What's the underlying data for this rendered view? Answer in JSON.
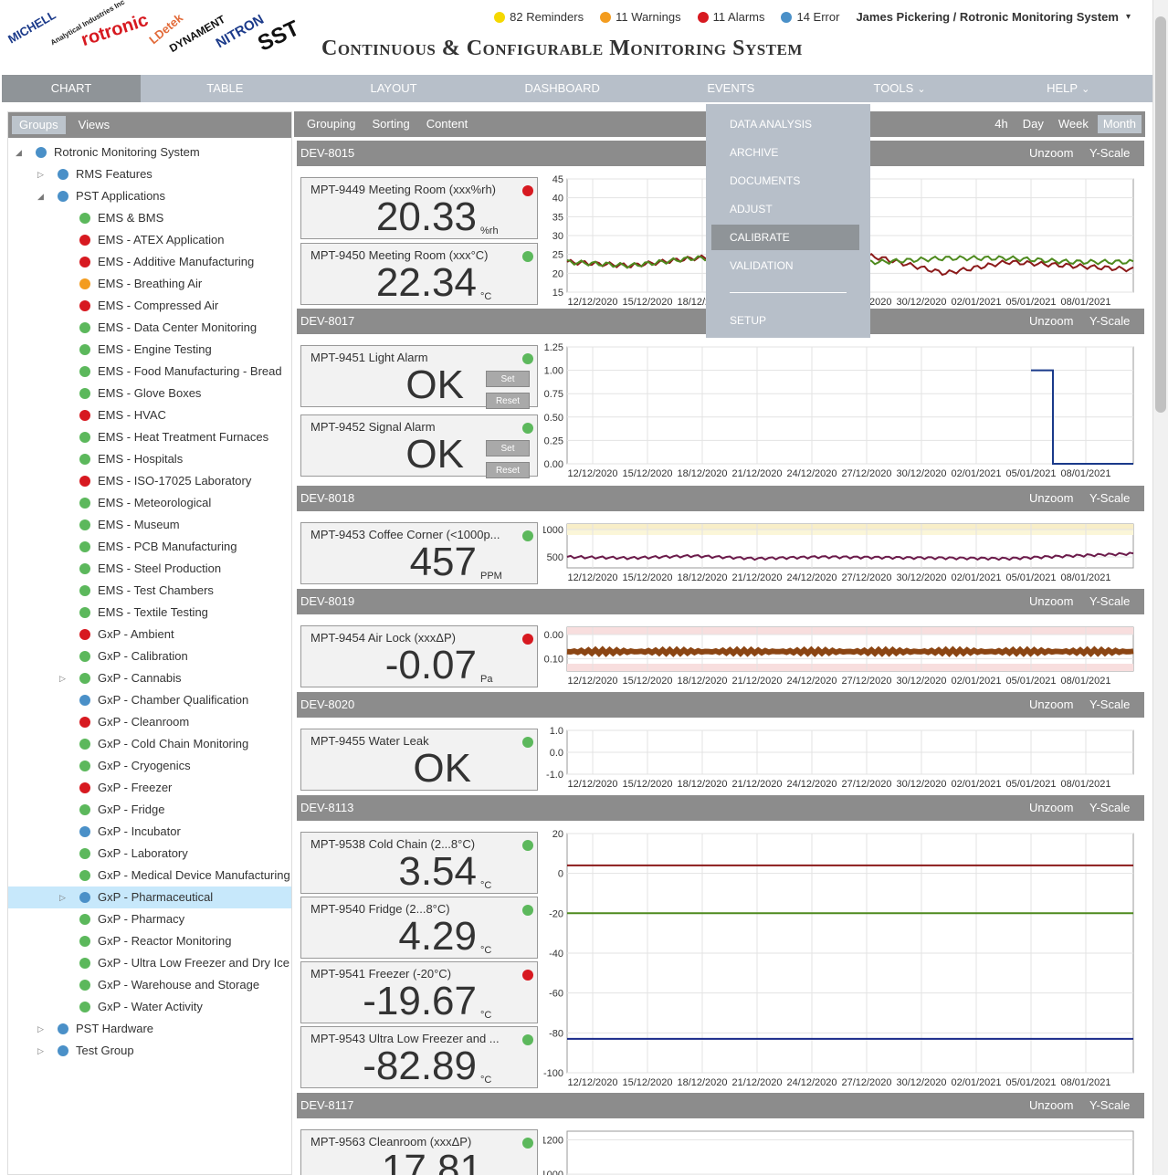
{
  "header": {
    "logos": [
      "MICHELL",
      "Analytical Industries Inc",
      "rotronic",
      "LDetek",
      "DYNAMENT",
      "NITRON",
      "SST"
    ],
    "title": "Continuous & Configurable Monitoring System",
    "status": [
      {
        "label": "82 Reminders",
        "color": "#f5d800"
      },
      {
        "label": "11 Warnings",
        "color": "#f39c1f"
      },
      {
        "label": "11 Alarms",
        "color": "#d71920"
      },
      {
        "label": "14 Error",
        "color": "#4a90c8"
      }
    ],
    "user": "James Pickering / Rotronic Monitoring System"
  },
  "nav": {
    "tabs": [
      "CHART",
      "TABLE",
      "LAYOUT",
      "DASHBOARD",
      "EVENTS",
      "TOOLS",
      "HELP"
    ],
    "active": "CHART"
  },
  "tools_menu": {
    "items": [
      "DATA ANALYSIS",
      "ARCHIVE",
      "DOCUMENTS",
      "ADJUST",
      "CALIBRATE",
      "VALIDATION",
      "SETUP"
    ],
    "active": "CALIBRATE"
  },
  "left_panel": {
    "tabs": [
      "Groups",
      "Views"
    ],
    "active_tab": "Groups",
    "tree": [
      {
        "label": "Rotronic Monitoring System",
        "level": 0,
        "color": "#4a90c8",
        "toggle": "expanded"
      },
      {
        "label": "RMS Features",
        "level": 1,
        "color": "#4a90c8",
        "toggle": "collapsed"
      },
      {
        "label": "PST Applications",
        "level": 1,
        "color": "#4a90c8",
        "toggle": "expanded"
      },
      {
        "label": "EMS & BMS",
        "level": 2,
        "color": "#5cb85c"
      },
      {
        "label": "EMS - ATEX Application",
        "level": 2,
        "color": "#d71920"
      },
      {
        "label": "EMS - Additive Manufacturing",
        "level": 2,
        "color": "#d71920"
      },
      {
        "label": "EMS - Breathing Air",
        "level": 2,
        "color": "#f39c1f"
      },
      {
        "label": "EMS - Compressed Air",
        "level": 2,
        "color": "#d71920"
      },
      {
        "label": "EMS - Data Center Monitoring",
        "level": 2,
        "color": "#5cb85c"
      },
      {
        "label": "EMS - Engine Testing",
        "level": 2,
        "color": "#5cb85c"
      },
      {
        "label": "EMS - Food Manufacturing - Bread",
        "level": 2,
        "color": "#5cb85c"
      },
      {
        "label": "EMS - Glove Boxes",
        "level": 2,
        "color": "#5cb85c"
      },
      {
        "label": "EMS - HVAC",
        "level": 2,
        "color": "#d71920"
      },
      {
        "label": "EMS - Heat Treatment Furnaces",
        "level": 2,
        "color": "#5cb85c"
      },
      {
        "label": "EMS - Hospitals",
        "level": 2,
        "color": "#5cb85c"
      },
      {
        "label": "EMS - ISO-17025 Laboratory",
        "level": 2,
        "color": "#d71920"
      },
      {
        "label": "EMS - Meteorological",
        "level": 2,
        "color": "#5cb85c"
      },
      {
        "label": "EMS - Museum",
        "level": 2,
        "color": "#5cb85c"
      },
      {
        "label": "EMS - PCB Manufacturing",
        "level": 2,
        "color": "#5cb85c"
      },
      {
        "label": "EMS - Steel Production",
        "level": 2,
        "color": "#5cb85c"
      },
      {
        "label": "EMS - Test Chambers",
        "level": 2,
        "color": "#5cb85c"
      },
      {
        "label": "EMS - Textile Testing",
        "level": 2,
        "color": "#5cb85c"
      },
      {
        "label": "GxP - Ambient",
        "level": 2,
        "color": "#d71920"
      },
      {
        "label": "GxP - Calibration",
        "level": 2,
        "color": "#5cb85c"
      },
      {
        "label": "GxP - Cannabis",
        "level": 2,
        "color": "#5cb85c",
        "toggle": "collapsed"
      },
      {
        "label": "GxP - Chamber Qualification",
        "level": 2,
        "color": "#4a90c8"
      },
      {
        "label": "GxP - Cleanroom",
        "level": 2,
        "color": "#d71920"
      },
      {
        "label": "GxP - Cold Chain Monitoring",
        "level": 2,
        "color": "#5cb85c"
      },
      {
        "label": "GxP - Cryogenics",
        "level": 2,
        "color": "#5cb85c"
      },
      {
        "label": "GxP - Freezer",
        "level": 2,
        "color": "#d71920"
      },
      {
        "label": "GxP - Fridge",
        "level": 2,
        "color": "#5cb85c"
      },
      {
        "label": "GxP - Incubator",
        "level": 2,
        "color": "#4a90c8"
      },
      {
        "label": "GxP - Laboratory",
        "level": 2,
        "color": "#5cb85c"
      },
      {
        "label": "GxP - Medical Device Manufacturing",
        "level": 2,
        "color": "#5cb85c"
      },
      {
        "label": "GxP - Pharmaceutical",
        "level": 2,
        "color": "#4a90c8",
        "toggle": "collapsed",
        "selected": true
      },
      {
        "label": "GxP - Pharmacy",
        "level": 2,
        "color": "#5cb85c"
      },
      {
        "label": "GxP - Reactor Monitoring",
        "level": 2,
        "color": "#5cb85c"
      },
      {
        "label": "GxP - Ultra Low Freezer and Dry Ice",
        "level": 2,
        "color": "#5cb85c"
      },
      {
        "label": "GxP - Warehouse and Storage",
        "level": 2,
        "color": "#5cb85c"
      },
      {
        "label": "GxP - Water Activity",
        "level": 2,
        "color": "#5cb85c"
      },
      {
        "label": "PST Hardware",
        "level": 1,
        "color": "#4a90c8",
        "toggle": "collapsed"
      },
      {
        "label": "Test Group",
        "level": 1,
        "color": "#4a90c8",
        "toggle": "collapsed"
      }
    ]
  },
  "right_toolbar": {
    "left": [
      "Grouping",
      "Sorting",
      "Content"
    ],
    "ranges": [
      "4h",
      "Day",
      "Week",
      "Month"
    ],
    "active_range": "Month"
  },
  "device_buttons": {
    "unzoom": "Unzoom",
    "yscale": "Y-Scale"
  },
  "sensor_buttons": {
    "set": "Set",
    "reset": "Reset"
  },
  "x_dates": [
    "12/12/2020",
    "15/12/2020",
    "18/12/2020",
    "21/12/2020",
    "24/12/2020",
    "27/12/2020",
    "30/12/2020",
    "02/01/2021",
    "05/01/2021",
    "08/01/2021"
  ],
  "devices": [
    {
      "id": "DEV-8015",
      "sensors": [
        {
          "name": "MPT-9449 Meeting Room (xxx%rh)",
          "value": "20.33",
          "unit": "%rh",
          "status": "#d71920"
        },
        {
          "name": "MPT-9450 Meeting Room (xxx°C)",
          "value": "22.34",
          "unit": "°C",
          "status": "#5cb85c"
        }
      ]
    },
    {
      "id": "DEV-8017",
      "sensors": [
        {
          "name": "MPT-9451 Light Alarm",
          "value": "OK",
          "unit": "",
          "status": "#5cb85c"
        },
        {
          "name": "MPT-9452 Signal Alarm",
          "value": "OK",
          "unit": "",
          "status": "#5cb85c"
        }
      ]
    },
    {
      "id": "DEV-8018",
      "sensors": [
        {
          "name": "MPT-9453 Coffee Corner (<1000p...",
          "value": "457",
          "unit": "PPM",
          "status": "#5cb85c"
        }
      ]
    },
    {
      "id": "DEV-8019",
      "sensors": [
        {
          "name": "MPT-9454 Air Lock (xxxΔP)",
          "value": "-0.07",
          "unit": "Pa",
          "status": "#d71920"
        }
      ]
    },
    {
      "id": "DEV-8020",
      "sensors": [
        {
          "name": "MPT-9455 Water Leak",
          "value": "OK",
          "unit": "",
          "status": "#5cb85c"
        }
      ]
    },
    {
      "id": "DEV-8113",
      "sensors": [
        {
          "name": "MPT-9538 Cold Chain (2...8°C)",
          "value": "3.54",
          "unit": "°C",
          "status": "#5cb85c"
        },
        {
          "name": "MPT-9540 Fridge (2...8°C)",
          "value": "4.29",
          "unit": "°C",
          "status": "#5cb85c"
        },
        {
          "name": "MPT-9541 Freezer (-20°C)",
          "value": "-19.67",
          "unit": "°C",
          "status": "#d71920"
        },
        {
          "name": "MPT-9543 Ultra Low Freezer and ...",
          "value": "-82.89",
          "unit": "°C",
          "status": "#5cb85c"
        }
      ]
    },
    {
      "id": "DEV-8117",
      "sensors": [
        {
          "name": "MPT-9563 Cleanroom (xxxΔP)",
          "value": "17.81",
          "unit": "",
          "status": "#5cb85c"
        }
      ]
    }
  ],
  "chart_data": [
    {
      "type": "line",
      "device": "DEV-8015",
      "x": [
        "12/12/2020",
        "15/12/2020",
        "18/12/2020",
        "21/12/2020",
        "24/12/2020",
        "27/12/2020",
        "30/12/2020",
        "02/01/2021",
        "05/01/2021",
        "08/01/2021"
      ],
      "yticks": [
        15,
        20,
        25,
        30,
        35,
        40,
        45
      ],
      "ylim": [
        15,
        45
      ],
      "series": [
        {
          "color": "#8b1a1a",
          "values": [
            23,
            22,
            24,
            25,
            27,
            24,
            20,
            23,
            22,
            21
          ]
        },
        {
          "color": "#4e8a1e",
          "values": [
            23,
            22,
            24,
            24,
            23,
            23,
            24,
            24,
            23,
            23
          ]
        }
      ]
    },
    {
      "type": "line",
      "device": "DEV-8017",
      "x": [
        "12/12/2020",
        "15/12/2020",
        "18/12/2020",
        "21/12/2020",
        "24/12/2020",
        "27/12/2020",
        "30/12/2020",
        "02/01/2021",
        "05/01/2021",
        "08/01/2021"
      ],
      "yticks": [
        "0.00",
        "0.25",
        "0.50",
        "0.75",
        "1.00",
        "1.25"
      ],
      "ylim": [
        0,
        1.25
      ],
      "series": [
        {
          "color": "#1a3a8a",
          "values": [
            null,
            null,
            null,
            null,
            null,
            null,
            null,
            null,
            1,
            0
          ]
        }
      ]
    },
    {
      "type": "line",
      "device": "DEV-8018",
      "x": [
        "12/12/2020",
        "15/12/2020",
        "18/12/2020",
        "21/12/2020",
        "24/12/2020",
        "27/12/2020",
        "30/12/2020",
        "02/01/2021",
        "05/01/2021",
        "08/01/2021"
      ],
      "yticks": [
        500,
        1000
      ],
      "ylim": [
        300,
        1100
      ],
      "series": [
        {
          "color": "#6b1a4a",
          "values": [
            500,
            480,
            520,
            470,
            500,
            490,
            480,
            470,
            520,
            560
          ]
        }
      ]
    },
    {
      "type": "line",
      "device": "DEV-8019",
      "x": [
        "12/12/2020",
        "15/12/2020",
        "18/12/2020",
        "21/12/2020",
        "24/12/2020",
        "27/12/2020",
        "30/12/2020",
        "02/01/2021",
        "05/01/2021",
        "08/01/2021"
      ],
      "yticks": [
        "-0.10",
        "0.00"
      ],
      "ylim": [
        -0.15,
        0.03
      ],
      "series": [
        {
          "color": "#8b4513",
          "values": [
            -0.07,
            -0.07,
            -0.07,
            -0.07,
            -0.07,
            -0.07,
            -0.07,
            -0.07,
            -0.07,
            -0.07
          ]
        }
      ]
    },
    {
      "type": "line",
      "device": "DEV-8020",
      "x": [
        "12/12/2020",
        "15/12/2020",
        "18/12/2020",
        "21/12/2020",
        "24/12/2020",
        "27/12/2020",
        "30/12/2020",
        "02/01/2021",
        "05/01/2021",
        "08/01/2021"
      ],
      "yticks": [
        "-1.0",
        "0.0",
        "1.0"
      ],
      "ylim": [
        -1,
        1
      ],
      "series": []
    },
    {
      "type": "line",
      "device": "DEV-8113",
      "x": [
        "12/12/2020",
        "15/12/2020",
        "18/12/2020",
        "21/12/2020",
        "24/12/2020",
        "27/12/2020",
        "30/12/2020",
        "02/01/2021",
        "05/01/2021",
        "08/01/2021"
      ],
      "yticks": [
        -100,
        -80,
        -60,
        -40,
        -20,
        0,
        20
      ],
      "ylim": [
        -100,
        20
      ],
      "series": [
        {
          "color": "#8b1a1a",
          "values": [
            4,
            4,
            4,
            4,
            4,
            4,
            4,
            4,
            4,
            4
          ]
        },
        {
          "color": "#4e8a1e",
          "values": [
            -20,
            -20,
            -20,
            -20,
            -20,
            -20,
            -20,
            -20,
            -20,
            -20
          ]
        },
        {
          "color": "#1a2a8a",
          "values": [
            -83,
            -83,
            -83,
            -83,
            -83,
            -83,
            -83,
            -83,
            -83,
            -83
          ]
        }
      ]
    },
    {
      "type": "line",
      "device": "DEV-8117",
      "x": [],
      "yticks": [
        1000,
        1200
      ],
      "ylim": [
        900,
        1250
      ],
      "series": []
    }
  ]
}
